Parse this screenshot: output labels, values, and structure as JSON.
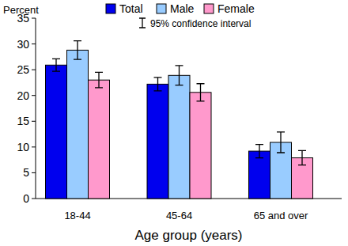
{
  "chart_data": {
    "type": "bar",
    "y_label": "Percent",
    "x_label": "Age group (years)",
    "error_bar_label": "95% confidence interval",
    "categories": [
      "18-44",
      "45-64",
      "65 and over"
    ],
    "series": [
      {
        "name": "Total",
        "color": "#0000ee",
        "values": [
          25.9,
          22.2,
          9.2
        ],
        "errors": [
          1.2,
          1.3,
          1.3
        ]
      },
      {
        "name": "Male",
        "color": "#99ccff",
        "values": [
          28.8,
          23.9,
          10.9
        ],
        "errors": [
          1.8,
          1.9,
          2.0
        ]
      },
      {
        "name": "Female",
        "color": "#ff99cc",
        "values": [
          23.0,
          20.6,
          7.9
        ],
        "errors": [
          1.5,
          1.7,
          1.4
        ]
      }
    ],
    "ylim": [
      0,
      35
    ],
    "yticks": [
      0,
      5,
      10,
      15,
      20,
      25,
      30,
      35
    ],
    "grid": false,
    "legend": "top"
  }
}
